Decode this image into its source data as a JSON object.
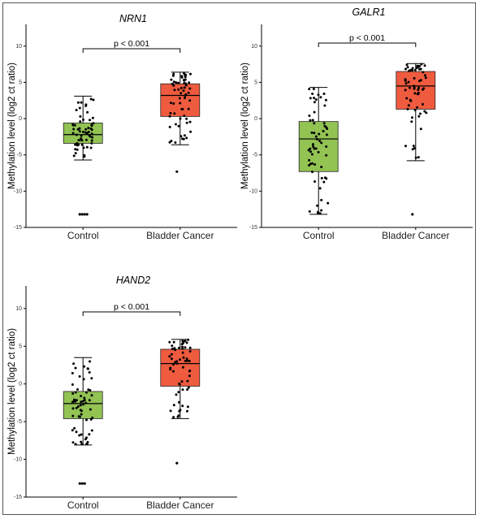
{
  "colors": {
    "control": "#92c353",
    "cancer": "#ef5b3f",
    "axis": "#000000",
    "point": "#000000"
  },
  "chart_data": [
    {
      "type": "box",
      "title": "NRN1",
      "ylabel": "Methylation level (log2 ct ratio)",
      "categories": [
        "Control",
        "Bladder Cancer"
      ],
      "yticks": [
        -15,
        -10,
        -5,
        0,
        5,
        10
      ],
      "ylim": [
        -15,
        13
      ],
      "annotation": "p < 0.001",
      "boxes": [
        {
          "category": "Control",
          "min": -5.7,
          "q1": -3.4,
          "median": -2.2,
          "q3": -0.6,
          "max": 3.1,
          "outliers": [
            -13.2,
            -13.2,
            -13.2,
            -13.2
          ]
        },
        {
          "category": "Bladder Cancer",
          "min": -3.6,
          "q1": 0.3,
          "median": 3.2,
          "q3": 4.8,
          "max": 6.4,
          "outliers": [
            -7.3
          ]
        }
      ]
    },
    {
      "type": "box",
      "title": "GALR1",
      "ylabel": "Methylation level (log2 ct ratio)",
      "categories": [
        "Control",
        "Bladder Cancer"
      ],
      "yticks": [
        -15,
        -10,
        -5,
        0,
        5,
        10
      ],
      "ylim": [
        -15,
        13
      ],
      "annotation": "p < 0.001",
      "boxes": [
        {
          "category": "Control",
          "min": -13.2,
          "q1": -7.3,
          "median": -2.8,
          "q3": -0.4,
          "max": 4.3,
          "outliers": []
        },
        {
          "category": "Bladder Cancer",
          "min": -5.8,
          "q1": 1.3,
          "median": 4.5,
          "q3": 6.5,
          "max": 7.6,
          "outliers": [
            -13.2
          ]
        }
      ]
    },
    {
      "type": "box",
      "title": "HAND2",
      "ylabel": "Methylation level (log2 ct ratio)",
      "categories": [
        "Control",
        "Bladder Cancer"
      ],
      "yticks": [
        -15,
        -10,
        -5,
        0,
        5,
        10
      ],
      "ylim": [
        -15,
        13
      ],
      "annotation": "p < 0.001",
      "boxes": [
        {
          "category": "Control",
          "min": -8.1,
          "q1": -4.6,
          "median": -2.6,
          "q3": -1.0,
          "max": 3.5,
          "outliers": [
            -13.2,
            -13.2,
            -13.2
          ]
        },
        {
          "category": "Bladder Cancer",
          "min": -4.6,
          "q1": -0.3,
          "median": 2.7,
          "q3": 4.6,
          "max": 5.9,
          "outliers": [
            -10.5
          ]
        }
      ]
    }
  ]
}
